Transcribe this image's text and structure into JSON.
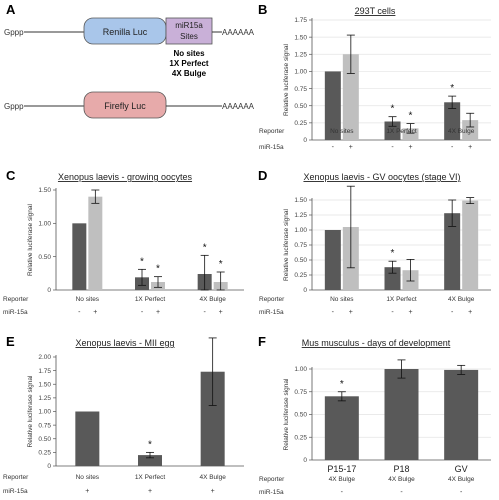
{
  "panelA": {
    "letter": "A",
    "cap_left": "Gppp",
    "tail": "AAAAAA",
    "renilla_label": "Renilla Luc",
    "mir_label_1": "miR15a",
    "mir_label_2": "Sites",
    "variants": [
      "No sites",
      "1X Perfect",
      "4X Bulge"
    ],
    "firefly_label": "Firefly Luc",
    "colors": {
      "renilla": "#a9c6ea",
      "mir": "#c9b0d8",
      "firefly": "#e7aaaa"
    }
  },
  "colors": {
    "dark": "#595959",
    "light": "#bfbfbf",
    "grid": "#e3e3e3",
    "axis": "#555555"
  },
  "chart_data": [
    {
      "panel": "B",
      "title": "293T cells",
      "type": "bar",
      "ylabel": "Relative luciferase signal",
      "ylim": [
        0,
        1.75
      ],
      "yticks": [
        0,
        0.25,
        0.5,
        0.75,
        1.0,
        1.25,
        1.5,
        1.75
      ],
      "ytick_labels": [
        "0",
        "0.25",
        "0.50",
        "0.75",
        "1.00",
        "1.25",
        "1.50",
        "1.75"
      ],
      "categories": [
        "No sites",
        "1X Perfect",
        "4X Bulge"
      ],
      "series": [
        {
          "mir": "-",
          "values": [
            1.0,
            0.27,
            0.55
          ],
          "errors": [
            0.0,
            0.07,
            0.09
          ],
          "stars": [
            false,
            true,
            true
          ]
        },
        {
          "mir": "+",
          "values": [
            1.25,
            0.17,
            0.29
          ],
          "errors": [
            0.28,
            0.07,
            0.1
          ],
          "stars": [
            false,
            true,
            false
          ]
        }
      ],
      "row1_label": "Reporter",
      "row2_label": "miR-15a",
      "grid": true
    },
    {
      "panel": "C",
      "title": "Xenopus laevis - growing oocytes",
      "type": "bar",
      "ylabel": "Relative luciferase signal",
      "ylim": [
        0,
        1.5
      ],
      "yticks": [
        0,
        0.5,
        1.0,
        1.5
      ],
      "ytick_labels": [
        "0",
        "0.50",
        "1.00",
        "1.50"
      ],
      "categories": [
        "No sites",
        "1X Perfect",
        "4X Bulge"
      ],
      "series": [
        {
          "mir": "-",
          "values": [
            1.0,
            0.19,
            0.24
          ],
          "errors": [
            0.0,
            0.12,
            0.28
          ],
          "stars": [
            false,
            true,
            true
          ]
        },
        {
          "mir": "+",
          "values": [
            1.4,
            0.12,
            0.12
          ],
          "errors": [
            0.1,
            0.08,
            0.15
          ],
          "stars": [
            false,
            true,
            true
          ]
        }
      ],
      "row1_label": "Reporter",
      "row2_label": "miR-15a",
      "grid": false
    },
    {
      "panel": "D",
      "title": "Xenopus laevis - GV oocytes (stage VI)",
      "type": "bar",
      "ylabel": "Relative luciferase signal",
      "ylim": [
        0,
        1.5
      ],
      "yticks": [
        0,
        0.25,
        0.5,
        0.75,
        1.0,
        1.25,
        1.5
      ],
      "ytick_labels": [
        "0",
        "0.25",
        "0.50",
        "0.75",
        "1.00",
        "1.25",
        "1.50"
      ],
      "categories": [
        "No sites",
        "1X Perfect",
        "4X Bulge"
      ],
      "series": [
        {
          "mir": "-",
          "values": [
            1.0,
            0.38,
            1.28
          ],
          "errors": [
            0.0,
            0.1,
            0.22
          ],
          "stars": [
            false,
            true,
            false
          ]
        },
        {
          "mir": "+",
          "values": [
            1.05,
            0.33,
            1.49
          ],
          "errors": [
            0.68,
            0.18,
            0.05
          ],
          "stars": [
            false,
            false,
            false
          ]
        }
      ],
      "row1_label": "Reporter",
      "row2_label": "miR-15a",
      "grid": true
    },
    {
      "panel": "E",
      "title": "Xenopus laevis - MII egg",
      "type": "bar",
      "ylabel": "Relative luciferase signal",
      "ylim": [
        0,
        2.0
      ],
      "yticks": [
        0,
        0.25,
        0.5,
        0.75,
        1.0,
        1.25,
        1.5,
        1.75,
        2.0
      ],
      "ytick_labels": [
        "0",
        "0.25",
        "0.50",
        "0.75",
        "1.00",
        "1.25",
        "1.50",
        "1.75",
        "2.00"
      ],
      "categories": [
        "No sites",
        "1X Perfect",
        "4X Bulge"
      ],
      "series": [
        {
          "mir": "+",
          "values": [
            1.0,
            0.2,
            1.73
          ],
          "errors": [
            0.0,
            0.05,
            0.62
          ],
          "stars": [
            false,
            true,
            false
          ]
        }
      ],
      "row1_label": "Reporter",
      "row2_label": "miR-15a",
      "grid": false
    },
    {
      "panel": "F",
      "title": "Mus musculus - days of development",
      "type": "bar",
      "ylabel": "Relative luciferase signal",
      "ylim": [
        0,
        1.0
      ],
      "yticks": [
        0,
        0.25,
        0.5,
        0.75,
        1.0
      ],
      "ytick_labels": [
        "0",
        "0.25",
        "0.50",
        "0.75",
        "1.00"
      ],
      "categories": [
        "P15-17",
        "P18",
        "GV"
      ],
      "reporter_values": [
        "4X Bulge",
        "4X Bulge",
        "4X Bulge"
      ],
      "series": [
        {
          "mir": "-",
          "values": [
            0.7,
            1.0,
            0.99
          ],
          "errors": [
            0.05,
            0.1,
            0.05
          ],
          "stars": [
            true,
            false,
            false
          ]
        }
      ],
      "row1_label": "Reporter",
      "row2_label": "miR-15a",
      "grid": true
    }
  ]
}
